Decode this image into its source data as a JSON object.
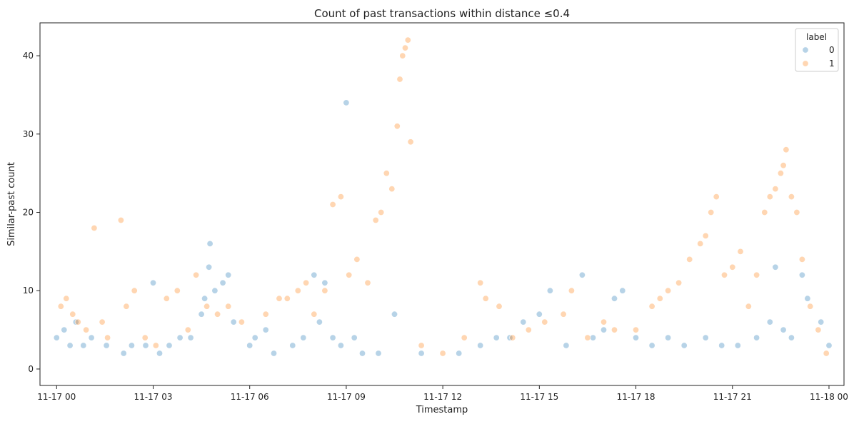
{
  "chart_data": {
    "type": "scatter",
    "title": "Count of past transactions within distance ≤0.4",
    "xlabel": "Timestamp",
    "ylabel": "Similar-past count",
    "xlim": [
      "2024-11-16T23:29",
      "2024-11-18T00:28"
    ],
    "ylim": [
      -2.1,
      44.2
    ],
    "x_ticks": [
      {
        "t": "2024-11-17T00:00",
        "label": "11-17 00"
      },
      {
        "t": "2024-11-17T03:00",
        "label": "11-17 03"
      },
      {
        "t": "2024-11-17T06:00",
        "label": "11-17 06"
      },
      {
        "t": "2024-11-17T09:00",
        "label": "11-17 09"
      },
      {
        "t": "2024-11-17T12:00",
        "label": "11-17 12"
      },
      {
        "t": "2024-11-17T15:00",
        "label": "11-17 15"
      },
      {
        "t": "2024-11-17T18:00",
        "label": "11-17 18"
      },
      {
        "t": "2024-11-17T21:00",
        "label": "11-17 21"
      },
      {
        "t": "2024-11-18T00:00",
        "label": "11-18 00"
      }
    ],
    "y_ticks": [
      0,
      10,
      20,
      30,
      40
    ],
    "grid": false,
    "legend": {
      "title": "label",
      "placement": "top-right"
    },
    "series": [
      {
        "name": "0",
        "color": "#1f77b4",
        "points": [
          [
            "2024-11-17T00:00",
            4
          ],
          [
            "2024-11-17T00:14",
            5
          ],
          [
            "2024-11-17T00:25",
            3
          ],
          [
            "2024-11-17T00:36",
            6
          ],
          [
            "2024-11-17T00:50",
            3
          ],
          [
            "2024-11-17T01:05",
            4
          ],
          [
            "2024-11-17T01:33",
            3
          ],
          [
            "2024-11-17T02:05",
            2
          ],
          [
            "2024-11-17T02:20",
            3
          ],
          [
            "2024-11-17T02:46",
            3
          ],
          [
            "2024-11-17T03:00",
            11
          ],
          [
            "2024-11-17T03:12",
            2
          ],
          [
            "2024-11-17T03:30",
            3
          ],
          [
            "2024-11-17T03:50",
            4
          ],
          [
            "2024-11-17T04:10",
            4
          ],
          [
            "2024-11-17T04:30",
            7
          ],
          [
            "2024-11-17T04:36",
            9
          ],
          [
            "2024-11-17T04:44",
            13
          ],
          [
            "2024-11-17T04:46",
            16
          ],
          [
            "2024-11-17T04:55",
            10
          ],
          [
            "2024-11-17T05:10",
            11
          ],
          [
            "2024-11-17T05:20",
            12
          ],
          [
            "2024-11-17T05:30",
            6
          ],
          [
            "2024-11-17T06:00",
            3
          ],
          [
            "2024-11-17T06:10",
            4
          ],
          [
            "2024-11-17T06:30",
            5
          ],
          [
            "2024-11-17T06:45",
            2
          ],
          [
            "2024-11-17T07:20",
            3
          ],
          [
            "2024-11-17T07:40",
            4
          ],
          [
            "2024-11-17T08:00",
            12
          ],
          [
            "2024-11-17T08:10",
            6
          ],
          [
            "2024-11-17T08:20",
            11
          ],
          [
            "2024-11-17T08:35",
            4
          ],
          [
            "2024-11-17T08:50",
            3
          ],
          [
            "2024-11-17T09:00",
            34
          ],
          [
            "2024-11-17T09:15",
            4
          ],
          [
            "2024-11-17T09:30",
            2
          ],
          [
            "2024-11-17T10:00",
            2
          ],
          [
            "2024-11-17T10:30",
            7
          ],
          [
            "2024-11-17T11:20",
            2
          ],
          [
            "2024-11-17T12:30",
            2
          ],
          [
            "2024-11-17T13:10",
            3
          ],
          [
            "2024-11-17T13:40",
            4
          ],
          [
            "2024-11-17T14:05",
            4
          ],
          [
            "2024-11-17T14:30",
            6
          ],
          [
            "2024-11-17T15:00",
            7
          ],
          [
            "2024-11-17T15:20",
            10
          ],
          [
            "2024-11-17T15:50",
            3
          ],
          [
            "2024-11-17T16:20",
            12
          ],
          [
            "2024-11-17T16:40",
            4
          ],
          [
            "2024-11-17T17:00",
            5
          ],
          [
            "2024-11-17T17:20",
            9
          ],
          [
            "2024-11-17T17:35",
            10
          ],
          [
            "2024-11-17T18:00",
            4
          ],
          [
            "2024-11-17T18:30",
            3
          ],
          [
            "2024-11-17T19:00",
            4
          ],
          [
            "2024-11-17T19:30",
            3
          ],
          [
            "2024-11-17T20:10",
            4
          ],
          [
            "2024-11-17T20:40",
            3
          ],
          [
            "2024-11-17T21:10",
            3
          ],
          [
            "2024-11-17T21:45",
            4
          ],
          [
            "2024-11-17T22:10",
            6
          ],
          [
            "2024-11-17T22:20",
            13
          ],
          [
            "2024-11-17T22:35",
            5
          ],
          [
            "2024-11-17T22:50",
            4
          ],
          [
            "2024-11-17T23:10",
            12
          ],
          [
            "2024-11-17T23:20",
            9
          ],
          [
            "2024-11-17T23:45",
            6
          ],
          [
            "2024-11-18T00:00",
            3
          ]
        ]
      },
      {
        "name": "1",
        "color": "#ff7f0e",
        "points": [
          [
            "2024-11-17T00:08",
            8
          ],
          [
            "2024-11-17T00:18",
            9
          ],
          [
            "2024-11-17T00:30",
            7
          ],
          [
            "2024-11-17T00:40",
            6
          ],
          [
            "2024-11-17T00:55",
            5
          ],
          [
            "2024-11-17T01:10",
            18
          ],
          [
            "2024-11-17T01:25",
            6
          ],
          [
            "2024-11-17T01:35",
            4
          ],
          [
            "2024-11-17T02:00",
            19
          ],
          [
            "2024-11-17T02:10",
            8
          ],
          [
            "2024-11-17T02:25",
            10
          ],
          [
            "2024-11-17T02:45",
            4
          ],
          [
            "2024-11-17T03:05",
            3
          ],
          [
            "2024-11-17T03:25",
            9
          ],
          [
            "2024-11-17T03:45",
            10
          ],
          [
            "2024-11-17T04:05",
            5
          ],
          [
            "2024-11-17T04:20",
            12
          ],
          [
            "2024-11-17T04:40",
            8
          ],
          [
            "2024-11-17T05:00",
            7
          ],
          [
            "2024-11-17T05:20",
            8
          ],
          [
            "2024-11-17T05:45",
            6
          ],
          [
            "2024-11-17T06:30",
            7
          ],
          [
            "2024-11-17T06:55",
            9
          ],
          [
            "2024-11-17T07:10",
            9
          ],
          [
            "2024-11-17T07:30",
            10
          ],
          [
            "2024-11-17T07:45",
            11
          ],
          [
            "2024-11-17T08:00",
            7
          ],
          [
            "2024-11-17T08:20",
            10
          ],
          [
            "2024-11-17T08:35",
            21
          ],
          [
            "2024-11-17T08:50",
            22
          ],
          [
            "2024-11-17T09:05",
            12
          ],
          [
            "2024-11-17T09:20",
            14
          ],
          [
            "2024-11-17T09:40",
            11
          ],
          [
            "2024-11-17T09:55",
            19
          ],
          [
            "2024-11-17T10:05",
            20
          ],
          [
            "2024-11-17T10:15",
            25
          ],
          [
            "2024-11-17T10:25",
            23
          ],
          [
            "2024-11-17T10:35",
            31
          ],
          [
            "2024-11-17T10:40",
            37
          ],
          [
            "2024-11-17T10:45",
            40
          ],
          [
            "2024-11-17T10:50",
            41
          ],
          [
            "2024-11-17T10:55",
            42
          ],
          [
            "2024-11-17T11:00",
            29
          ],
          [
            "2024-11-17T11:20",
            3
          ],
          [
            "2024-11-17T12:00",
            2
          ],
          [
            "2024-11-17T12:40",
            4
          ],
          [
            "2024-11-17T13:10",
            11
          ],
          [
            "2024-11-17T13:20",
            9
          ],
          [
            "2024-11-17T13:45",
            8
          ],
          [
            "2024-11-17T14:10",
            4
          ],
          [
            "2024-11-17T14:40",
            5
          ],
          [
            "2024-11-17T15:10",
            6
          ],
          [
            "2024-11-17T15:45",
            7
          ],
          [
            "2024-11-17T16:00",
            10
          ],
          [
            "2024-11-17T16:30",
            4
          ],
          [
            "2024-11-17T17:00",
            6
          ],
          [
            "2024-11-17T17:20",
            5
          ],
          [
            "2024-11-17T18:00",
            5
          ],
          [
            "2024-11-17T18:30",
            8
          ],
          [
            "2024-11-17T18:45",
            9
          ],
          [
            "2024-11-17T19:00",
            10
          ],
          [
            "2024-11-17T19:20",
            11
          ],
          [
            "2024-11-17T19:40",
            14
          ],
          [
            "2024-11-17T20:00",
            16
          ],
          [
            "2024-11-17T20:10",
            17
          ],
          [
            "2024-11-17T20:20",
            20
          ],
          [
            "2024-11-17T20:30",
            22
          ],
          [
            "2024-11-17T20:45",
            12
          ],
          [
            "2024-11-17T21:00",
            13
          ],
          [
            "2024-11-17T21:15",
            15
          ],
          [
            "2024-11-17T21:30",
            8
          ],
          [
            "2024-11-17T21:45",
            12
          ],
          [
            "2024-11-17T22:00",
            20
          ],
          [
            "2024-11-17T22:10",
            22
          ],
          [
            "2024-11-17T22:20",
            23
          ],
          [
            "2024-11-17T22:30",
            25
          ],
          [
            "2024-11-17T22:35",
            26
          ],
          [
            "2024-11-17T22:40",
            28
          ],
          [
            "2024-11-17T22:50",
            22
          ],
          [
            "2024-11-17T23:00",
            20
          ],
          [
            "2024-11-17T23:10",
            14
          ],
          [
            "2024-11-17T23:25",
            8
          ],
          [
            "2024-11-17T23:40",
            5
          ],
          [
            "2024-11-17T23:55",
            2
          ]
        ]
      }
    ]
  }
}
